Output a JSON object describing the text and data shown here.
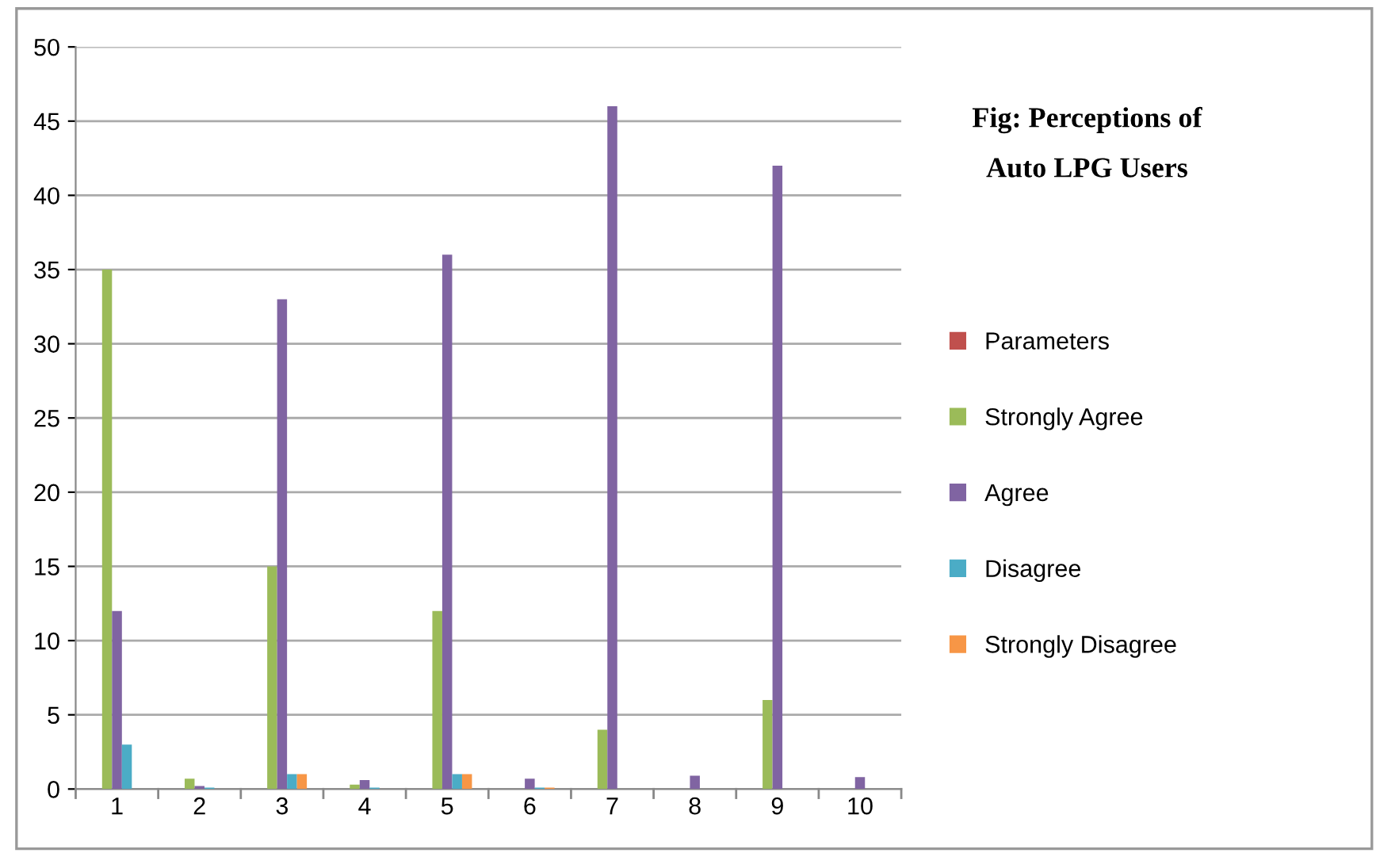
{
  "chart_data": {
    "type": "bar",
    "title": "Fig: Perceptions of\nAuto LPG Users",
    "categories": [
      "1",
      "2",
      "3",
      "4",
      "5",
      "6",
      "7",
      "8",
      "9",
      "10"
    ],
    "series": [
      {
        "name": "Parameters",
        "color": "#c0504d",
        "values": [
          null,
          null,
          null,
          null,
          null,
          null,
          null,
          null,
          null,
          null
        ]
      },
      {
        "name": "Strongly Agree",
        "color": "#9bbb59",
        "values": [
          35,
          0.7,
          15,
          0.3,
          12,
          null,
          4,
          null,
          6,
          null
        ]
      },
      {
        "name": "Agree",
        "color": "#8064a2",
        "values": [
          12,
          0.2,
          33,
          0.6,
          36,
          0.7,
          46,
          0.9,
          42,
          0.8
        ]
      },
      {
        "name": "Disagree",
        "color": "#4bacc6",
        "values": [
          3,
          0.1,
          1,
          0.1,
          1,
          0.1,
          null,
          null,
          null,
          null
        ]
      },
      {
        "name": "Strongly Disagree",
        "color": "#f79646",
        "values": [
          null,
          null,
          1,
          null,
          1,
          0.1,
          null,
          null,
          null,
          null
        ]
      }
    ],
    "ylim": [
      0,
      50
    ],
    "yticks": [
      0,
      5,
      10,
      15,
      20,
      25,
      30,
      35,
      40,
      45,
      50
    ],
    "grid": "y",
    "legend": "right"
  }
}
